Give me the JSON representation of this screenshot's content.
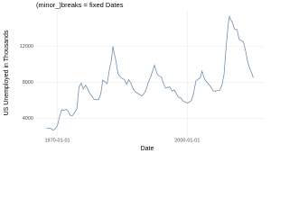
{
  "chart_data": {
    "type": "line",
    "title": "(minor_)breaks = fixed Dates",
    "x_label": "Date",
    "y_label": "US Unemployed in Thousands",
    "x": [
      "1967-07-01",
      "1968-01-01",
      "1968-07-01",
      "1969-01-01",
      "1969-07-01",
      "1970-01-01",
      "1970-07-01",
      "1971-01-01",
      "1971-07-01",
      "1972-01-01",
      "1972-07-01",
      "1973-01-01",
      "1973-07-01",
      "1974-01-01",
      "1974-07-01",
      "1975-01-01",
      "1975-07-01",
      "1976-01-01",
      "1976-07-01",
      "1977-01-01",
      "1977-07-01",
      "1978-01-01",
      "1978-07-01",
      "1979-01-01",
      "1979-07-01",
      "1980-01-01",
      "1980-07-01",
      "1981-01-01",
      "1981-07-01",
      "1982-01-01",
      "1982-07-01",
      "1982-11-01",
      "1983-01-01",
      "1983-07-01",
      "1984-01-01",
      "1984-07-01",
      "1985-01-01",
      "1985-07-01",
      "1986-01-01",
      "1986-07-01",
      "1987-01-01",
      "1987-07-01",
      "1988-01-01",
      "1988-07-01",
      "1989-01-01",
      "1989-07-01",
      "1990-01-01",
      "1990-07-01",
      "1991-01-01",
      "1991-07-01",
      "1992-01-01",
      "1992-06-01",
      "1993-01-01",
      "1993-07-01",
      "1994-01-01",
      "1994-07-01",
      "1995-01-01",
      "1995-07-01",
      "1996-01-01",
      "1996-07-01",
      "1997-01-01",
      "1997-07-01",
      "1998-01-01",
      "1998-07-01",
      "1999-01-01",
      "1999-07-01",
      "2000-01-01",
      "2000-07-01",
      "2001-01-01",
      "2001-07-01",
      "2002-01-01",
      "2002-07-01",
      "2003-01-01",
      "2003-06-01",
      "2004-01-01",
      "2004-07-01",
      "2005-01-01",
      "2005-07-01",
      "2006-01-01",
      "2006-07-01",
      "2007-01-01",
      "2007-07-01",
      "2008-01-01",
      "2008-07-01",
      "2009-01-01",
      "2009-07-01",
      "2009-10-01",
      "2010-01-01",
      "2010-07-01",
      "2011-01-01",
      "2011-07-01",
      "2012-01-01",
      "2012-07-01",
      "2013-01-01",
      "2013-07-01",
      "2014-01-01",
      "2014-07-01",
      "2015-01-01",
      "2015-04-01"
    ],
    "series": [
      {
        "color": "#6f8fae",
        "values": [
          2944,
          2878,
          2883,
          2692,
          2838,
          3201,
          4175,
          4986,
          4903,
          5016,
          4800,
          4326,
          4317,
          4644,
          5084,
          7501,
          7920,
          7280,
          7706,
          7280,
          6760,
          6489,
          6109,
          6098,
          6083,
          6683,
          8263,
          8071,
          7863,
          9397,
          10548,
          12051,
          11534,
          10493,
          9008,
          8641,
          8423,
          8336,
          7795,
          8319,
          7884,
          7287,
          6953,
          6803,
          6682,
          6495,
          6752,
          7202,
          8015,
          8554,
          9283,
          9930,
          9012,
          8709,
          8630,
          7902,
          7375,
          7460,
          7491,
          7037,
          7158,
          6740,
          6368,
          6297,
          5950,
          5838,
          5708,
          5806,
          6023,
          6875,
          8182,
          8359,
          8520,
          9266,
          8370,
          8081,
          7787,
          7475,
          7064,
          7036,
          7116,
          7118,
          7685,
          8895,
          12058,
          14601,
          15352,
          15046,
          14599,
          13893,
          13926,
          12797,
          12692,
          12497,
          11490,
          10202,
          9513,
          8903,
          8549
        ]
      }
    ],
    "xlim": [
      "1965-02-01",
      "2017-09-01"
    ],
    "xticks": [
      "1970-01-01",
      "2000-01-01"
    ],
    "ylim": [
      2052,
      15985
    ],
    "yticks": [
      4000,
      8000,
      12000
    ],
    "grid": true
  }
}
